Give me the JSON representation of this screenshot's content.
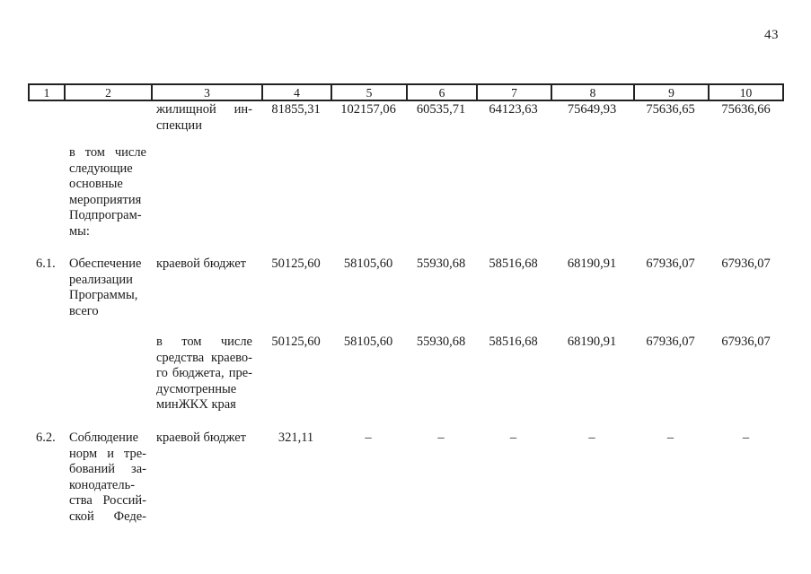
{
  "page": {
    "number": "43"
  },
  "table": {
    "header": [
      "1",
      "2",
      "3",
      "4",
      "5",
      "6",
      "7",
      "8",
      "9",
      "10"
    ],
    "rows": [
      {
        "num": "",
        "name_lines": [],
        "source_lines": [
          "жилищной ин-",
          "спекции"
        ],
        "values": [
          "81855,31",
          "102157,06",
          "60535,71",
          "64123,63",
          "75649,93",
          "75636,65",
          "75636,66"
        ]
      },
      {
        "num": "",
        "name_lines": [
          "в том числе",
          "следующие",
          "основные",
          "мероприятия",
          "Подпрограм-",
          "мы:"
        ],
        "source_lines": []
      },
      {
        "num": "6.1.",
        "name_lines": [
          "Обеспечение",
          "реализации",
          "Программы,",
          "всего"
        ],
        "source_lines": [
          "краевой бюджет"
        ],
        "values": [
          "50125,60",
          "58105,60",
          "55930,68",
          "58516,68",
          "68190,91",
          "67936,07",
          "67936,07"
        ]
      },
      {
        "num": "",
        "name_lines": [],
        "source_lines": [
          "в том числе",
          "средства краево-",
          "го бюджета, пре-",
          "дусмотренные",
          "минЖКХ края"
        ],
        "values": [
          "50125,60",
          "58105,60",
          "55930,68",
          "58516,68",
          "68190,91",
          "67936,07",
          "67936,07"
        ]
      },
      {
        "num": "6.2.",
        "name_lines": [
          "Соблюдение",
          "норм и тре-",
          "бований за-",
          "конодатель-",
          "ства Россий-",
          "ской Феде-"
        ],
        "source_lines": [
          "краевой бюджет"
        ],
        "values": [
          "321,11",
          "–",
          "–",
          "–",
          "–",
          "–",
          "–"
        ]
      }
    ]
  }
}
